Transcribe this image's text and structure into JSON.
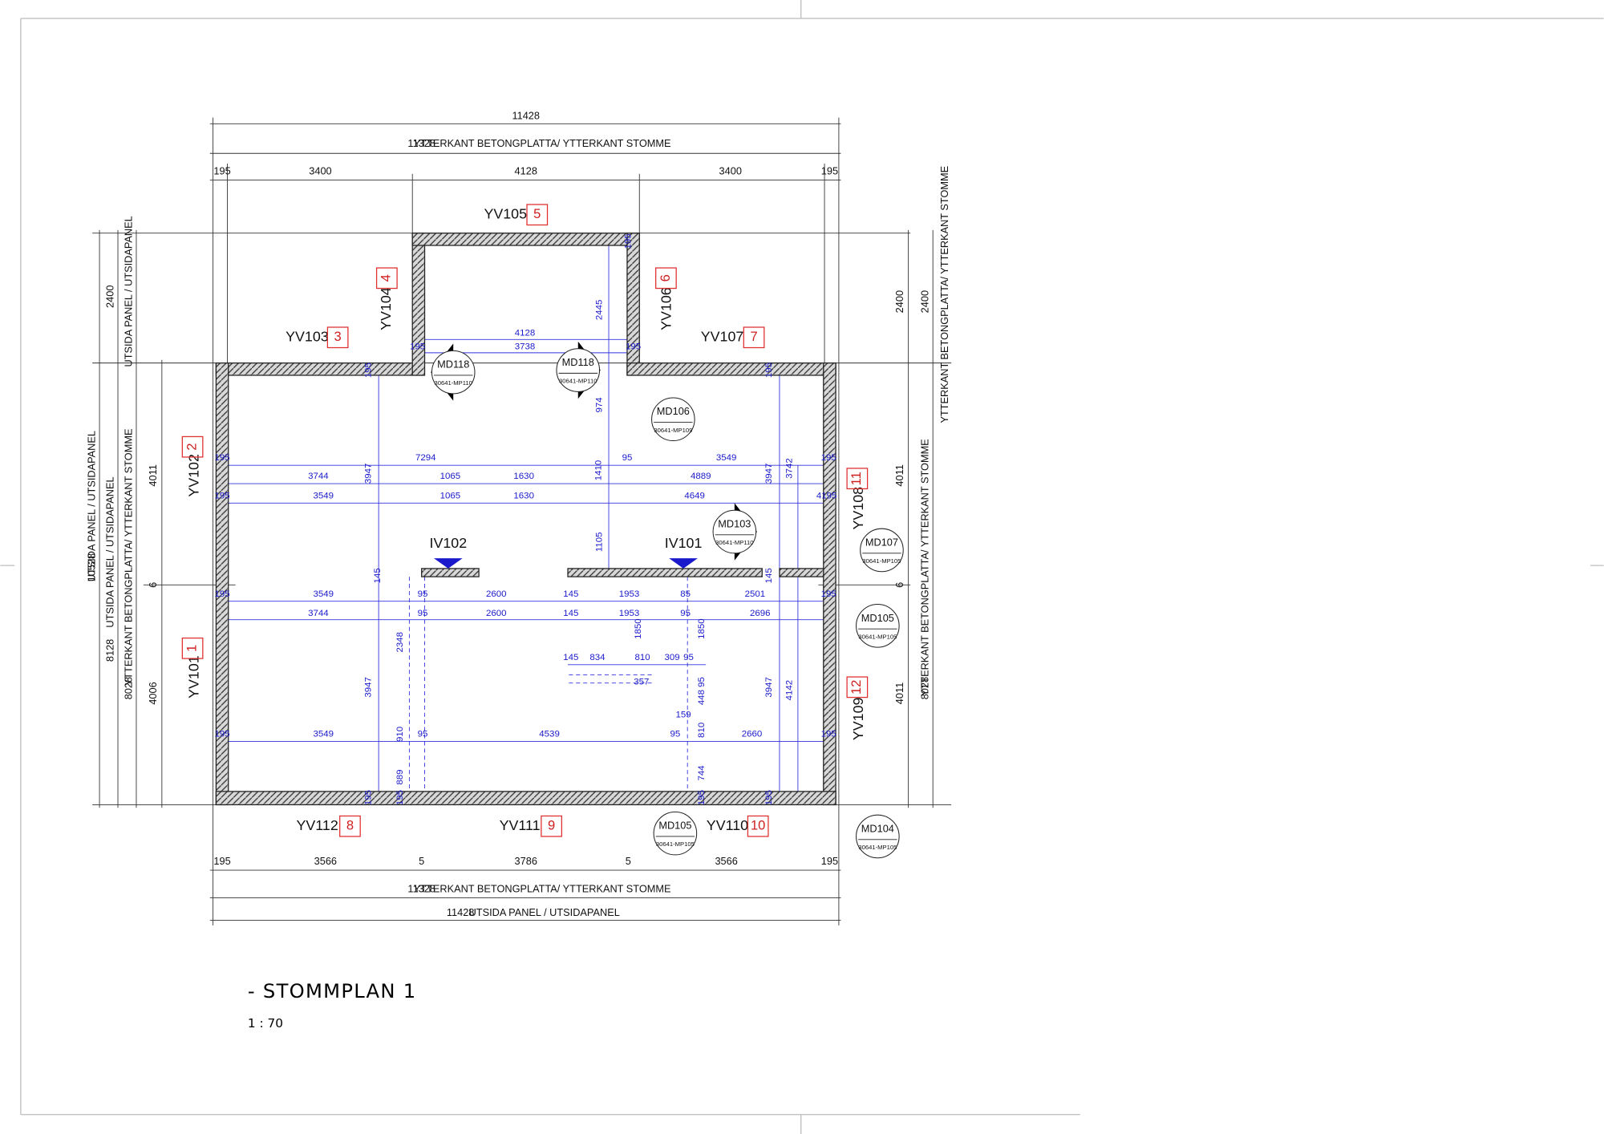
{
  "title": "- STOMMPLAN 1",
  "scale": "1 : 70",
  "walls": [
    {
      "name": "YV101",
      "number": "1"
    },
    {
      "name": "YV102",
      "number": "2"
    },
    {
      "name": "YV103",
      "number": "3"
    },
    {
      "name": "YV104",
      "number": "4"
    },
    {
      "name": "YV105",
      "number": "5"
    },
    {
      "name": "YV106",
      "number": "6"
    },
    {
      "name": "YV107",
      "number": "7"
    },
    {
      "name": "YV112",
      "number": "8"
    },
    {
      "name": "YV111",
      "number": "9"
    },
    {
      "name": "YV110",
      "number": "10"
    },
    {
      "name": "YV108",
      "number": "11"
    },
    {
      "name": "YV109",
      "number": "12"
    }
  ],
  "interior_walls": [
    "IV102",
    "IV101"
  ],
  "details": [
    {
      "name": "MD118",
      "ref": "30641-MP110"
    },
    {
      "name": "MD118",
      "ref": "30641-MP110"
    },
    {
      "name": "MD106",
      "ref": "30641-MP109"
    },
    {
      "name": "MD103",
      "ref": "30641-MP110"
    },
    {
      "name": "MD107",
      "ref": "30641-MP105"
    },
    {
      "name": "MD105",
      "ref": "30641-MP105"
    },
    {
      "name": "MD105",
      "ref": "30641-MP105"
    },
    {
      "name": "MD104",
      "ref": "30641-MP105"
    }
  ],
  "outer_dimensions": [
    "11428",
    "11328",
    "YTTERKANT BETONGPLATTA/ YTTERKANT STOMME",
    "195",
    "3400",
    "4128",
    "3400",
    "195",
    "195",
    "3566",
    "5",
    "3786",
    "5",
    "3566",
    "195",
    "11328",
    "YTTERKANT BETONGPLATTA/ YTTERKANT STOMME",
    "11428",
    "UTSIDA PANEL / UTSIDAPANEL",
    "10528",
    "UTSIDA PANEL / UTSIDAPANEL",
    "2400",
    "UTSIDA PANEL / UTSIDAPANEL",
    "8128",
    "UTSIDA PANEL / UTSIDAPANEL",
    "8028",
    "YTTERKANT BETONGPLATTA/ YTTERKANT STOMME",
    "4011",
    "6",
    "4006",
    "2400",
    "2400",
    "YTTERKANT BETONGPLATTA/ YTTERKANT STOMME",
    "4011",
    "6",
    "4011",
    "8028",
    "YTTERKANT BETONGPLATTA/ YTTERKANT STOMME"
  ],
  "inner_dimensions": [
    "4128",
    "3738",
    "195",
    "195",
    "2445",
    "195",
    "195",
    "195",
    "974",
    "195",
    "7294",
    "95",
    "3549",
    "195",
    "3744",
    "3947",
    "1065",
    "1630",
    "1410",
    "4889",
    "3947",
    "3742",
    "195",
    "3549",
    "1065",
    "1630",
    "4649",
    "4195",
    "1105",
    "145",
    "145",
    "195",
    "3549",
    "95",
    "2600",
    "145",
    "1953",
    "85",
    "2501",
    "195",
    "3744",
    "95",
    "2600",
    "145",
    "1953",
    "95",
    "2696",
    "1850",
    "1850",
    "2348",
    "145",
    "834",
    "810",
    "309",
    "95",
    "357",
    "95",
    "3947",
    "3947",
    "4142",
    "448",
    "159",
    "195",
    "3549",
    "910",
    "95",
    "4539",
    "95",
    "810",
    "2660",
    "195",
    "744",
    "889",
    "195",
    "195",
    "195",
    "195"
  ]
}
